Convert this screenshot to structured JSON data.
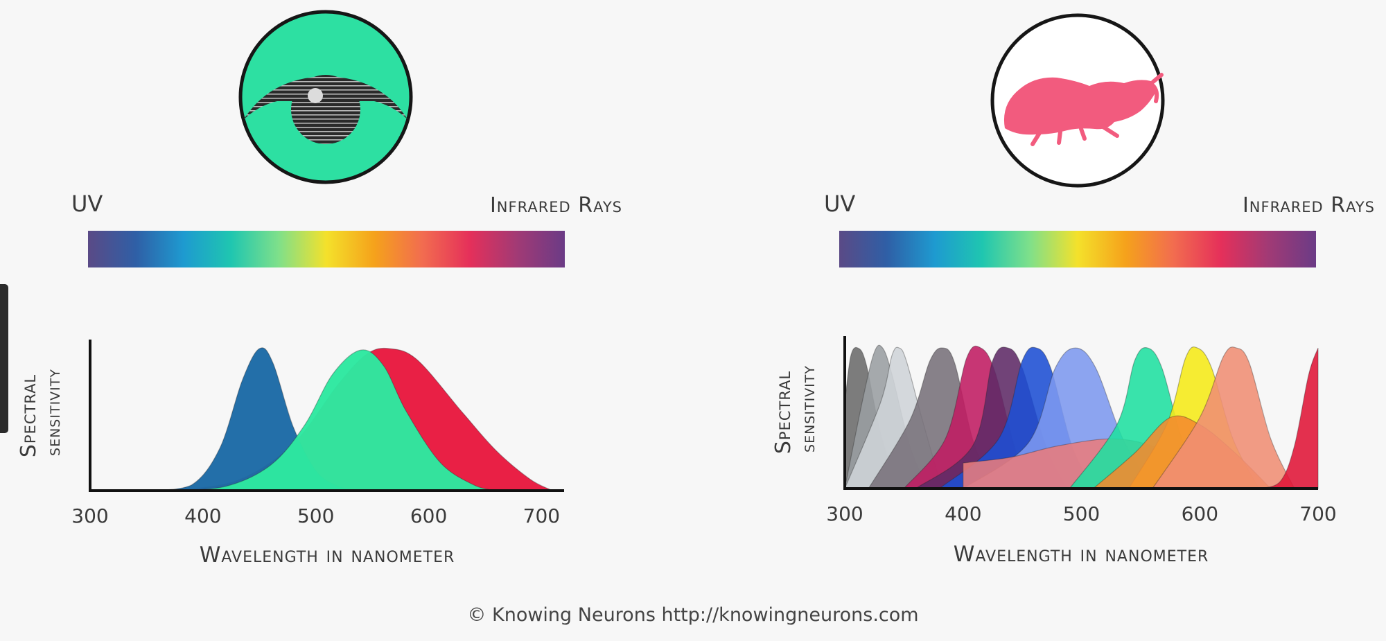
{
  "panels": [
    {
      "icon": "human-eye-icon",
      "spectrum_left_label": "UV",
      "spectrum_right_label": "Infrared Rays",
      "ylabel_line1": "Spectral",
      "ylabel_line2": "sensitivity",
      "xlabel": "Wavelength in nanometer"
    },
    {
      "icon": "mantis-shrimp-icon",
      "spectrum_left_label": "UV",
      "spectrum_right_label": "Infrared Rays",
      "ylabel_line1": "Spectral",
      "ylabel_line2": "sensitivity",
      "xlabel": "Wavelength in nanometer"
    }
  ],
  "credit": "© Knowing Neurons http://knowingneurons.com",
  "colors": {
    "human_eye_background": "#2de0a2",
    "shrimp_silhouette": "#f25b7e"
  },
  "spectrum_colors": [
    "#5a4a86",
    "#2f5fa6",
    "#1e9ad0",
    "#1fc6b0",
    "#7fe08a",
    "#f4e12b",
    "#f5a21b",
    "#f26d4f",
    "#e5305a",
    "#a13a75",
    "#6b3b86"
  ],
  "chart_data": [
    {
      "type": "area",
      "title": "",
      "xlabel": "Wavelength in nanometer",
      "ylabel": "Spectral sensitivity",
      "xlim": [
        300,
        720
      ],
      "ylim": [
        0,
        1
      ],
      "x_ticks": [
        300,
        400,
        500,
        600,
        700
      ],
      "series": [
        {
          "peak": 560,
          "values": [
            [
              370,
              0.0
            ],
            [
              430,
              0.07
            ],
            [
              480,
              0.33
            ],
            [
              520,
              0.75
            ],
            [
              545,
              0.96
            ],
            [
              565,
              1.0
            ],
            [
              590,
              0.92
            ],
            [
              630,
              0.55
            ],
            [
              660,
              0.28
            ],
            [
              690,
              0.08
            ],
            [
              710,
              0.0
            ]
          ],
          "color": "#e8193f"
        },
        {
          "peak": 450,
          "values": [
            [
              355,
              0.0
            ],
            [
              390,
              0.04
            ],
            [
              415,
              0.3
            ],
            [
              435,
              0.78
            ],
            [
              450,
              1.0
            ],
            [
              462,
              0.9
            ],
            [
              480,
              0.45
            ],
            [
              500,
              0.14
            ],
            [
              520,
              0.03
            ],
            [
              540,
              0.0
            ]
          ],
          "color": "#1c6aa6"
        },
        {
          "peak": 540,
          "values": [
            [
              370,
              0.0
            ],
            [
              420,
              0.03
            ],
            [
              460,
              0.18
            ],
            [
              490,
              0.46
            ],
            [
              515,
              0.82
            ],
            [
              540,
              0.99
            ],
            [
              560,
              0.88
            ],
            [
              580,
              0.56
            ],
            [
              610,
              0.2
            ],
            [
              640,
              0.04
            ],
            [
              660,
              0.0
            ]
          ],
          "color": "#2de8a0"
        }
      ]
    },
    {
      "type": "area",
      "title": "",
      "xlabel": "Wavelength in nanometer",
      "ylabel": "Spectral sensitivity",
      "xlim": [
        300,
        700
      ],
      "ylim": [
        0,
        1
      ],
      "x_ticks": [
        300,
        400,
        500,
        600,
        700
      ],
      "series": [
        {
          "peak": 310,
          "values": [
            [
              300,
              0.6
            ],
            [
              305,
              0.93
            ],
            [
              311,
              0.99
            ],
            [
              318,
              0.88
            ],
            [
              330,
              0.4
            ],
            [
              345,
              0.0
            ]
          ],
          "color": "#6b6b6b"
        },
        {
          "peak": 330,
          "values": [
            [
              300,
              0.0
            ],
            [
              315,
              0.62
            ],
            [
              325,
              0.96
            ],
            [
              332,
              0.99
            ],
            [
              340,
              0.8
            ],
            [
              355,
              0.3
            ],
            [
              370,
              0.0
            ]
          ],
          "color": "#9a9ea2"
        },
        {
          "peak": 345,
          "values": [
            [
              300,
              0.0
            ],
            [
              330,
              0.6
            ],
            [
              340,
              0.94
            ],
            [
              346,
              0.99
            ],
            [
              352,
              0.9
            ],
            [
              365,
              0.5
            ],
            [
              382,
              0.0
            ]
          ],
          "color": "#cfd4d8"
        },
        {
          "peak": 383,
          "values": [
            [
              320,
              0.0
            ],
            [
              355,
              0.48
            ],
            [
              372,
              0.9
            ],
            [
              383,
              0.99
            ],
            [
              393,
              0.88
            ],
            [
              408,
              0.35
            ],
            [
              425,
              0.0
            ]
          ],
          "color": "#77717a"
        },
        {
          "peak": 415,
          "values": [
            [
              350,
              0.0
            ],
            [
              385,
              0.35
            ],
            [
              403,
              0.92
            ],
            [
              415,
              0.99
            ],
            [
              427,
              0.82
            ],
            [
              445,
              0.25
            ],
            [
              460,
              0.0
            ]
          ],
          "color": "#c01b62"
        },
        {
          "peak": 440,
          "values": [
            [
              360,
              0.0
            ],
            [
              408,
              0.3
            ],
            [
              425,
              0.9
            ],
            [
              438,
              0.99
            ],
            [
              450,
              0.85
            ],
            [
              470,
              0.3
            ],
            [
              488,
              0.0
            ]
          ],
          "color": "#5e2a67"
        },
        {
          "peak": 462,
          "values": [
            [
              380,
              0.0
            ],
            [
              430,
              0.35
            ],
            [
              450,
              0.9
            ],
            [
              462,
              0.99
            ],
            [
              474,
              0.85
            ],
            [
              492,
              0.3
            ],
            [
              510,
              0.0
            ]
          ],
          "color": "#1d4fd4"
        },
        {
          "peak": 495,
          "values": [
            [
              400,
              0.0
            ],
            [
              455,
              0.32
            ],
            [
              478,
              0.85
            ],
            [
              495,
              0.99
            ],
            [
              512,
              0.85
            ],
            [
              535,
              0.35
            ],
            [
              560,
              0.0
            ]
          ],
          "color": "#7d99ef"
        },
        {
          "peak": 528,
          "values": [
            [
              400,
              0.18
            ],
            [
              440,
              0.22
            ],
            [
              480,
              0.3
            ],
            [
              525,
              0.35
            ],
            [
              560,
              0.3
            ],
            [
              600,
              0.15
            ],
            [
              630,
              0.0
            ]
          ],
          "color": "#e97c7c"
        },
        {
          "peak": 555,
          "values": [
            [
              490,
              0.0
            ],
            [
              530,
              0.45
            ],
            [
              545,
              0.9
            ],
            [
              556,
              0.99
            ],
            [
              568,
              0.85
            ],
            [
              585,
              0.35
            ],
            [
              605,
              0.0
            ]
          ],
          "color": "#1fe0a0"
        },
        {
          "peak": 598,
          "values": [
            [
              540,
              0.0
            ],
            [
              572,
              0.45
            ],
            [
              588,
              0.92
            ],
            [
              598,
              0.99
            ],
            [
              610,
              0.85
            ],
            [
              628,
              0.35
            ],
            [
              650,
              0.0
            ]
          ],
          "color": "#f6ea17"
        },
        {
          "peak": 600,
          "values": [
            [
              510,
              0.0
            ],
            [
              545,
              0.25
            ],
            [
              575,
              0.5
            ],
            [
              600,
              0.45
            ],
            [
              630,
              0.25
            ],
            [
              660,
              0.0
            ]
          ],
          "color": "#f58a2e"
        },
        {
          "peak": 630,
          "values": [
            [
              560,
              0.0
            ],
            [
              600,
              0.5
            ],
            [
              620,
              0.93
            ],
            [
              631,
              0.99
            ],
            [
              642,
              0.88
            ],
            [
              660,
              0.35
            ],
            [
              680,
              0.0
            ]
          ],
          "color": "#f08e74"
        },
        {
          "peak": 700,
          "values": [
            [
              650,
              0.0
            ],
            [
              668,
              0.05
            ],
            [
              680,
              0.3
            ],
            [
              692,
              0.8
            ],
            [
              700,
              0.99
            ]
          ],
          "color": "#e01537"
        }
      ]
    }
  ]
}
